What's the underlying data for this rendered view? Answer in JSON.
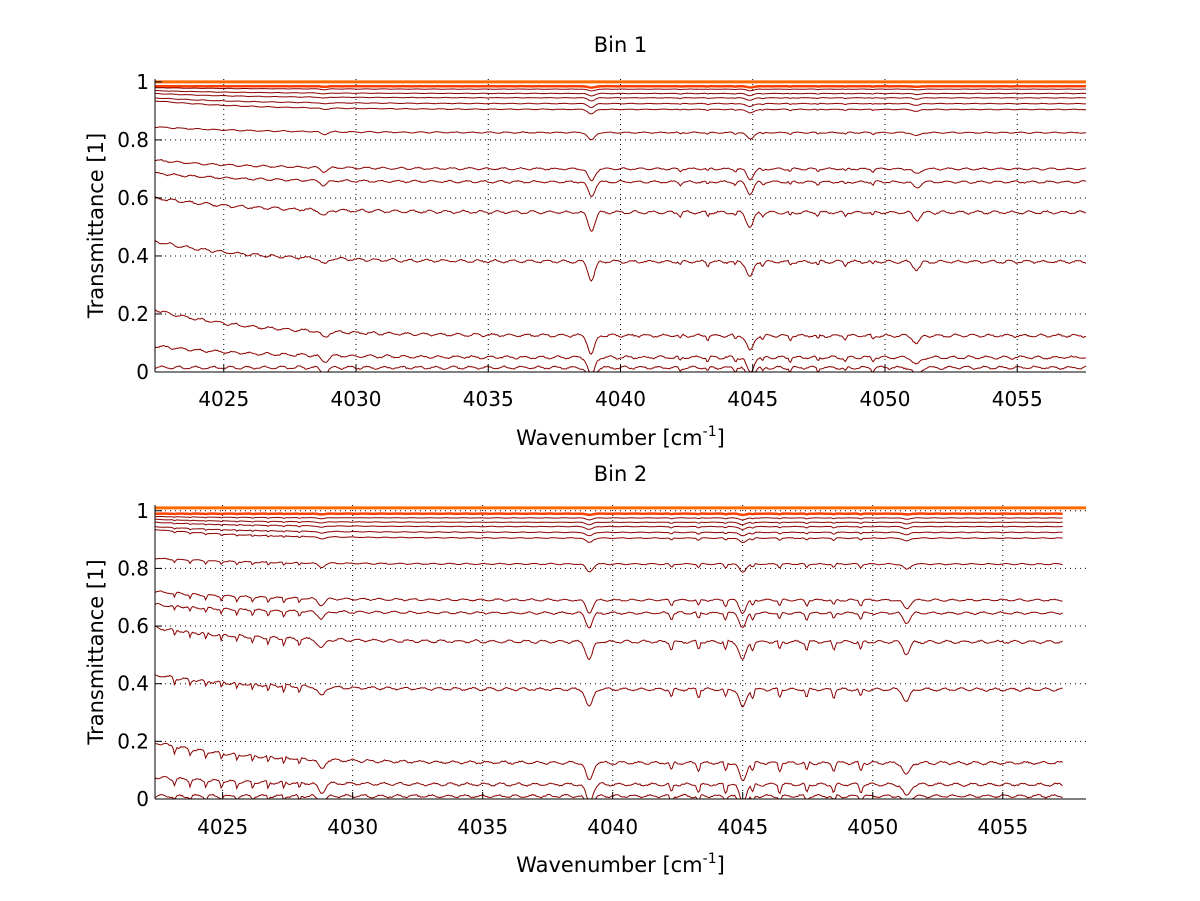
{
  "chart_data": [
    {
      "type": "line",
      "title": "Bin 1",
      "xlabel": "Wavenumber [cm",
      "xlabel_sup": "-1",
      "xlabel_end": "]",
      "ylabel": "Transmittance [1]",
      "xlim": [
        4022.4,
        4057.6
      ],
      "ylim": [
        0,
        1.01
      ],
      "x_end": 4057.6,
      "xticks": [
        4025,
        4030,
        4035,
        4040,
        4045,
        4050,
        4055
      ],
      "yticks": [
        0,
        0.2,
        0.4,
        0.6,
        0.8,
        1
      ],
      "ytick_labels": [
        "0",
        "0.2",
        "0.4",
        "0.6",
        "0.8",
        "1"
      ],
      "grid": true,
      "series_levels": [
        0.985,
        0.975,
        0.96,
        0.945,
        0.925,
        0.905,
        0.825,
        0.7,
        0.655,
        0.55,
        0.38,
        0.125,
        0.05,
        0.015
      ],
      "series_start_offsets": [
        0,
        0.005,
        0.01,
        0.015,
        0.02,
        0.03,
        0.02,
        0.03,
        0.03,
        0.05,
        0.07,
        0.09,
        0.04,
        0
      ],
      "dip_centers": [
        4028.8,
        4038.9,
        4044.9,
        4051.2
      ],
      "dip_depths": [
        0.02,
        0.06,
        0.05,
        0.025
      ],
      "series_color": "#8b0000"
    },
    {
      "type": "line",
      "title": "Bin 2",
      "xlabel": "Wavenumber [cm",
      "xlabel_sup": "-1",
      "xlabel_end": "]",
      "ylabel": "Transmittance [1]",
      "xlim": [
        4022.4,
        4058.2
      ],
      "ylim": [
        0,
        1.02
      ],
      "x_end": 4057.3,
      "xticks": [
        4025,
        4030,
        4035,
        4040,
        4045,
        4050,
        4055
      ],
      "yticks": [
        0,
        0.2,
        0.4,
        0.6,
        0.8,
        1
      ],
      "ytick_labels": [
        "0",
        "0.2",
        "0.4",
        "0.6",
        "0.8",
        "1"
      ],
      "grid": true,
      "series_levels": [
        0.99,
        0.975,
        0.96,
        0.945,
        0.925,
        0.905,
        0.815,
        0.69,
        0.645,
        0.545,
        0.38,
        0.125,
        0.05,
        0.01
      ],
      "series_start_offsets": [
        0,
        0.005,
        0.01,
        0.015,
        0.02,
        0.03,
        0.02,
        0.03,
        0.03,
        0.05,
        0.05,
        0.07,
        0.025,
        0
      ],
      "dip_centers": [
        4028.8,
        4039.1,
        4045.0,
        4051.3
      ],
      "dip_depths": [
        0.03,
        0.06,
        0.06,
        0.04
      ],
      "series_color": "#8b0000"
    }
  ]
}
